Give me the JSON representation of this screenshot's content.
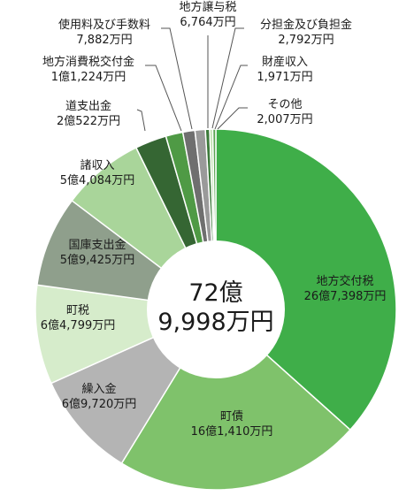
{
  "chart_data": {
    "type": "pie",
    "donut": true,
    "unit": "万円",
    "total_label_line1": "72億",
    "total_label_line2": "9,998万円",
    "slices": [
      {
        "name": "地方交付税",
        "value_text": "26億7,398万円",
        "value": 267398,
        "color": "#3fae49"
      },
      {
        "name": "町債",
        "value_text": "16億1,410万円",
        "value": 161410,
        "color": "#7fc26b"
      },
      {
        "name": "繰入金",
        "value_text": "6億9,720万円",
        "value": 69720,
        "color": "#b4b4b4"
      },
      {
        "name": "町税",
        "value_text": "6億4,799万円",
        "value": 64799,
        "color": "#d6eccb"
      },
      {
        "name": "国庫支出金",
        "value_text": "5億9,425万円",
        "value": 59425,
        "color": "#8f9f8c"
      },
      {
        "name": "諸収入",
        "value_text": "5億4,084万円",
        "value": 54084,
        "color": "#a9d59a"
      },
      {
        "name": "道支出金",
        "value_text": "2億522万円",
        "value": 20522,
        "color": "#356633"
      },
      {
        "name": "地方消費税交付金",
        "value_text": "1億1,224万円",
        "value": 11224,
        "color": "#4f9a45"
      },
      {
        "name": "使用料及び手数料",
        "value_text": "7,882万円",
        "value": 7882,
        "color": "#6f6f6f"
      },
      {
        "name": "地方譲与税",
        "value_text": "6,764万円",
        "value": 6764,
        "color": "#9a9a9a"
      },
      {
        "name": "分担金及び負担金",
        "value_text": "2,792万円",
        "value": 2792,
        "color": "#3c7a3a"
      },
      {
        "name": "財産収入",
        "value_text": "1,971万円",
        "value": 1971,
        "color": "#bfe0b0"
      },
      {
        "name": "その他",
        "value_text": "2,007万円",
        "value": 2007,
        "color": "#5aa552"
      }
    ]
  }
}
